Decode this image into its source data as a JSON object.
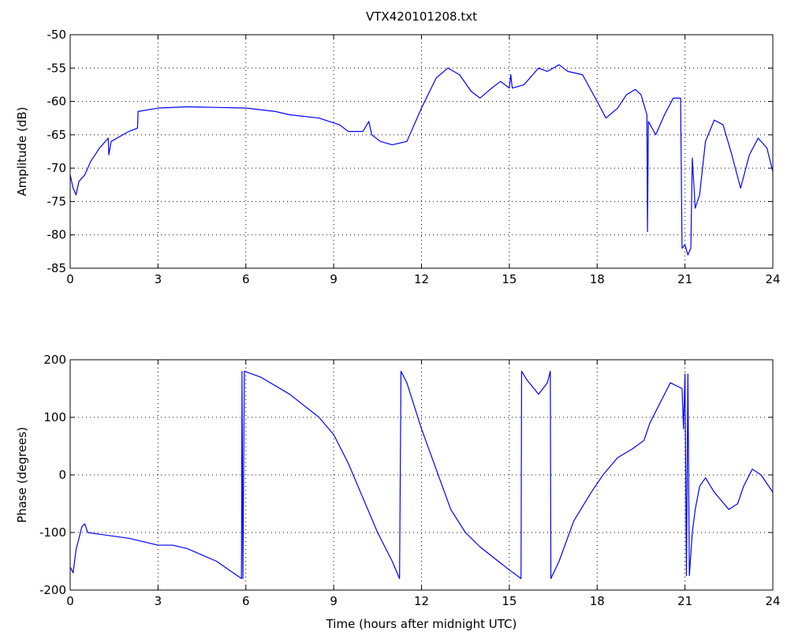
{
  "chart_data": [
    {
      "type": "line",
      "title": "VTX420101208.txt",
      "ylabel": "Amplitude (dB)",
      "color": "#0000ff",
      "grid": true,
      "xlim": [
        0,
        24
      ],
      "xticks": [
        0,
        3,
        6,
        9,
        12,
        15,
        18,
        21,
        24
      ],
      "ylim": [
        -85,
        -50
      ],
      "yticks": [
        -85,
        -80,
        -75,
        -70,
        -65,
        -60,
        -55,
        -50
      ],
      "x": [
        0,
        0.1,
        0.2,
        0.3,
        0.5,
        0.7,
        1.0,
        1.3,
        1.32,
        1.4,
        2.0,
        2.3,
        2.32,
        3,
        4,
        5,
        6,
        7,
        7.5,
        8.5,
        9.2,
        9.5,
        10,
        10.2,
        10.3,
        10.6,
        11,
        11.5,
        12,
        12.5,
        12.9,
        13.3,
        13.7,
        14,
        14.4,
        14.7,
        15,
        15.05,
        15.1,
        15.5,
        16,
        16.3,
        16.7,
        17,
        17.5,
        18,
        18.3,
        18.7,
        19,
        19.3,
        19.5,
        19.7,
        19.72,
        19.75,
        20,
        20.3,
        20.6,
        20.85,
        20.9,
        21.0,
        21.1,
        21.2,
        21.25,
        21.35,
        21.5,
        21.7,
        22,
        22.3,
        22.6,
        22.9,
        23.2,
        23.5,
        23.8,
        24
      ],
      "values": [
        -71,
        -73,
        -74,
        -72,
        -71,
        -69,
        -67,
        -65.5,
        -68,
        -66,
        -64.5,
        -64,
        -61.5,
        -61,
        -60.8,
        -60.9,
        -61,
        -61.5,
        -62,
        -62.5,
        -63.5,
        -64.5,
        -64.5,
        -63,
        -65,
        -66,
        -66.5,
        -66,
        -61,
        -56.5,
        -55,
        -56,
        -58.5,
        -59.5,
        -58,
        -57,
        -58,
        -56,
        -58,
        -57.5,
        -55,
        -55.5,
        -54.5,
        -55.5,
        -56,
        -60,
        -62.5,
        -61,
        -59,
        -58.2,
        -59,
        -62,
        -79.5,
        -63,
        -65,
        -62,
        -59.5,
        -59.5,
        -82,
        -81.5,
        -83,
        -82,
        -68.5,
        -76,
        -74,
        -66,
        -62.8,
        -63.5,
        -68,
        -73,
        -68,
        -65.5,
        -67,
        -70.5
      ]
    },
    {
      "type": "line",
      "xlabel": "Time (hours after midnight UTC)",
      "ylabel": "Phase (degrees)",
      "color": "#0000ff",
      "grid": true,
      "xlim": [
        0,
        24
      ],
      "xticks": [
        0,
        3,
        6,
        9,
        12,
        15,
        18,
        21,
        24
      ],
      "ylim": [
        -200,
        200
      ],
      "yticks": [
        -200,
        -100,
        0,
        100,
        200
      ],
      "x": [
        0,
        0.1,
        0.2,
        0.4,
        0.5,
        0.6,
        1,
        2,
        3,
        3.5,
        4,
        5,
        5.85,
        5.87,
        5.9,
        5.95,
        6.5,
        7.5,
        8.5,
        9,
        9.5,
        10,
        10.5,
        11,
        11.25,
        11.3,
        11.5,
        12,
        12.5,
        13,
        13.5,
        14,
        15,
        15.4,
        15.42,
        15.6,
        16,
        16.3,
        16.4,
        16.42,
        16.7,
        17.2,
        17.8,
        18.2,
        18.7,
        19.2,
        19.6,
        19.8,
        20.2,
        20.5,
        20.9,
        20.95,
        21.0,
        21.05,
        21.1,
        21.15,
        21.25,
        21.35,
        21.5,
        21.7,
        22,
        22.5,
        22.8,
        23,
        23.3,
        23.6,
        24
      ],
      "values": [
        -160,
        -170,
        -130,
        -90,
        -85,
        -100,
        -103,
        -110,
        -122,
        -122,
        -128,
        -150,
        -180,
        180,
        -180,
        180,
        170,
        140,
        100,
        70,
        20,
        -40,
        -100,
        -150,
        -180,
        180,
        160,
        80,
        10,
        -60,
        -100,
        -125,
        -165,
        -180,
        180,
        165,
        140,
        160,
        180,
        -180,
        -150,
        -80,
        -30,
        0,
        30,
        45,
        60,
        90,
        130,
        160,
        150,
        80,
        175,
        -175,
        175,
        -175,
        -100,
        -60,
        -20,
        -5,
        -30,
        -60,
        -50,
        -20,
        10,
        0,
        -30
      ]
    }
  ]
}
